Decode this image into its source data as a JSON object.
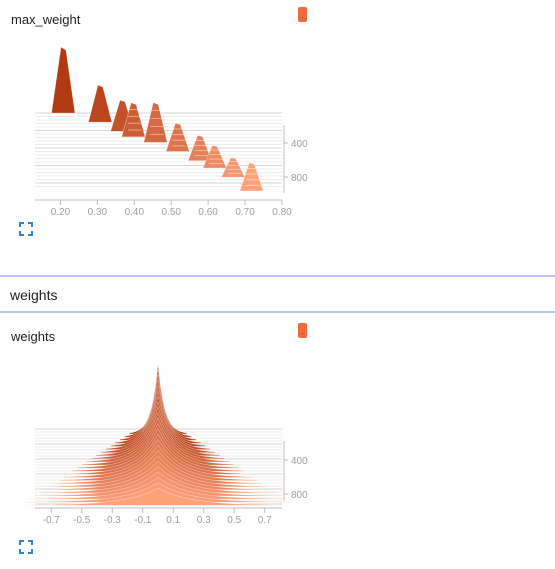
{
  "cards": [
    {
      "title": "max_weight",
      "x_ticks": [
        "0.20",
        "0.30",
        "0.40",
        "0.50",
        "0.60",
        "0.70",
        "0.80"
      ],
      "y_ticks": [
        "400",
        "800"
      ]
    },
    {
      "title": "weights",
      "x_ticks": [
        "-0.7",
        "-0.5",
        "-0.3",
        "-0.1",
        "0.1",
        "0.3",
        "0.5",
        "0.7"
      ],
      "y_ticks": [
        "400",
        "800"
      ]
    }
  ],
  "section": {
    "title": "weights"
  },
  "icons": {
    "menu": "dot-menu-icon",
    "expand": "expand-icon"
  },
  "colors": {
    "dark": "#b23a12",
    "light": "#ffa27a",
    "accent": "#f06a3c",
    "divider": "#b9c7ee"
  },
  "chart_data": [
    {
      "type": "area",
      "title": "max_weight",
      "xlim": [
        0.15,
        0.8
      ],
      "y_tick_labels": [
        "400",
        "800"
      ],
      "peaks": [
        {
          "step": 0,
          "x": 0.21,
          "h": 1.0
        },
        {
          "step": 100,
          "x": 0.31,
          "h": 0.5
        },
        {
          "step": 200,
          "x": 0.37,
          "h": 0.4
        },
        {
          "step": 260,
          "x": 0.4,
          "h": 0.45
        },
        {
          "step": 320,
          "x": 0.46,
          "h": 0.55
        },
        {
          "step": 420,
          "x": 0.52,
          "h": 0.35
        },
        {
          "step": 520,
          "x": 0.58,
          "h": 0.3
        },
        {
          "step": 600,
          "x": 0.62,
          "h": 0.25
        },
        {
          "step": 700,
          "x": 0.67,
          "h": 0.2
        },
        {
          "step": 850,
          "x": 0.72,
          "h": 0.35
        }
      ]
    },
    {
      "type": "area",
      "title": "weights",
      "xlim": [
        -0.8,
        0.8
      ],
      "y_tick_labels": [
        "400",
        "800"
      ],
      "center": 0.0,
      "max_height": 1.0,
      "final_height": 0.3
    }
  ]
}
